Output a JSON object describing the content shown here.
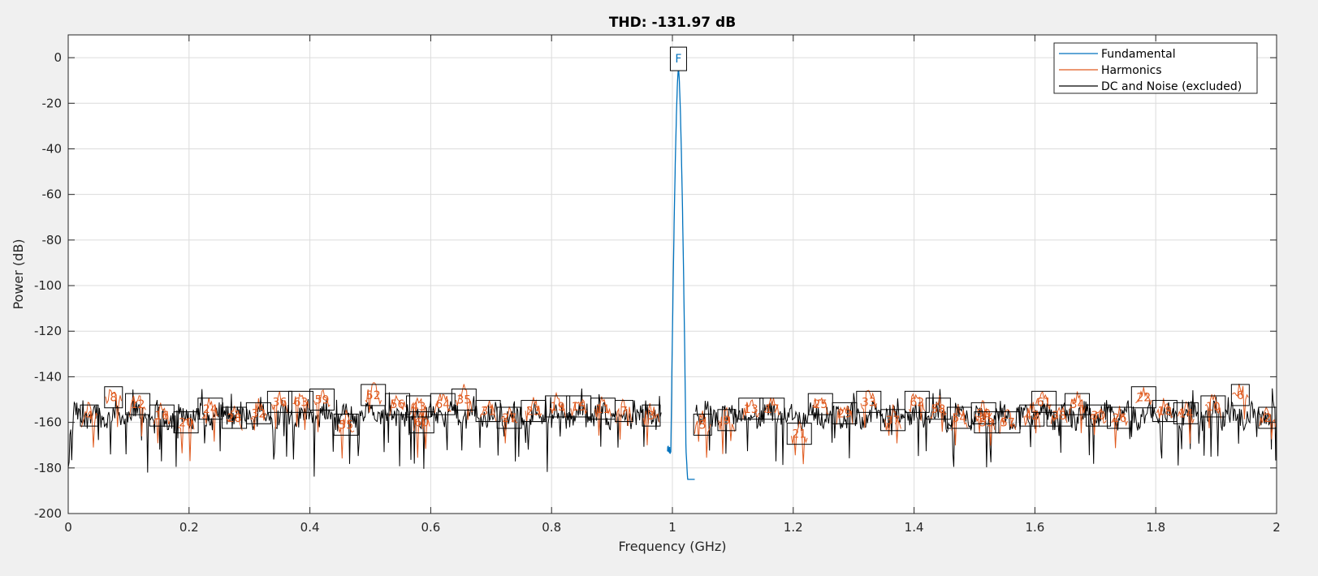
{
  "chart_data": {
    "type": "line",
    "title": "THD: -131.97 dB",
    "xlabel": "Frequency (GHz)",
    "ylabel": "Power (dB)",
    "xlim": [
      0,
      2
    ],
    "ylim": [
      -200,
      10
    ],
    "xticks": [
      0,
      0.2,
      0.4,
      0.6,
      0.8,
      1,
      1.2,
      1.4,
      1.6,
      1.8,
      2
    ],
    "xtick_labels": [
      "0",
      "0.2",
      "0.4",
      "0.6",
      "0.8",
      "1",
      "1.2",
      "1.4",
      "1.6",
      "1.8",
      "2"
    ],
    "yticks": [
      0,
      -20,
      -40,
      -60,
      -80,
      -100,
      -120,
      -140,
      -160,
      -180,
      -200
    ],
    "ytick_labels": [
      "0",
      "-20",
      "-40",
      "-60",
      "-80",
      "-100",
      "-120",
      "-140",
      "-160",
      "-180",
      "-200"
    ],
    "grid": true,
    "legend_position": "top-right",
    "legend": [
      "Fundamental",
      "Harmonics",
      "DC and Noise (excluded)"
    ],
    "colors": {
      "fundamental": "#0072bd",
      "harmonics": "#e05a1e",
      "noise": "#000000",
      "grid": "#dcdcdc",
      "background": "#f0f0f0"
    },
    "noise_floor_db": -157,
    "fundamental": {
      "label": "F",
      "frequency": 1.01,
      "peak_db": -5,
      "min_db": -185
    },
    "harmonic_markers": [
      {
        "label": "4",
        "x": 0.035,
        "y": -157
      },
      {
        "label": "8",
        "x": 0.075,
        "y": -149
      },
      {
        "label": "12",
        "x": 0.115,
        "y": -152
      },
      {
        "label": "16",
        "x": 0.155,
        "y": -157
      },
      {
        "label": "20",
        "x": 0.195,
        "y": -160
      },
      {
        "label": "24",
        "x": 0.235,
        "y": -154
      },
      {
        "label": "28",
        "x": 0.275,
        "y": -158
      },
      {
        "label": "32",
        "x": 0.315,
        "y": -156
      },
      {
        "label": "36",
        "x": 0.35,
        "y": -151
      },
      {
        "label": "63",
        "x": 0.385,
        "y": -151
      },
      {
        "label": "59",
        "x": 0.42,
        "y": -150
      },
      {
        "label": "55",
        "x": 0.46,
        "y": -161
      },
      {
        "label": "52",
        "x": 0.505,
        "y": -148
      },
      {
        "label": "56",
        "x": 0.545,
        "y": -152
      },
      {
        "label": "43",
        "x": 0.58,
        "y": -153
      },
      {
        "label": "60",
        "x": 0.585,
        "y": -160
      },
      {
        "label": "64",
        "x": 0.62,
        "y": -152
      },
      {
        "label": "35",
        "x": 0.655,
        "y": -150
      },
      {
        "label": "31",
        "x": 0.695,
        "y": -155
      },
      {
        "label": "27",
        "x": 0.73,
        "y": -158
      },
      {
        "label": "23",
        "x": 0.77,
        "y": -155
      },
      {
        "label": "19",
        "x": 0.81,
        "y": -153
      },
      {
        "label": "15",
        "x": 0.845,
        "y": -153
      },
      {
        "label": "11",
        "x": 0.885,
        "y": -154
      },
      {
        "label": "7",
        "x": 0.92,
        "y": -155
      },
      {
        "label": "3",
        "x": 0.965,
        "y": -157
      },
      {
        "label": "5",
        "x": 1.05,
        "y": -161
      },
      {
        "label": "9",
        "x": 1.09,
        "y": -159
      },
      {
        "label": "13",
        "x": 1.13,
        "y": -154
      },
      {
        "label": "17",
        "x": 1.165,
        "y": -154
      },
      {
        "label": "21",
        "x": 1.21,
        "y": -165
      },
      {
        "label": "25",
        "x": 1.245,
        "y": -152
      },
      {
        "label": "29",
        "x": 1.285,
        "y": -156
      },
      {
        "label": "33",
        "x": 1.325,
        "y": -151
      },
      {
        "label": "37",
        "x": 1.365,
        "y": -159
      },
      {
        "label": "62",
        "x": 1.405,
        "y": -151
      },
      {
        "label": "58",
        "x": 1.44,
        "y": -154
      },
      {
        "label": "54",
        "x": 1.475,
        "y": -158
      },
      {
        "label": "50",
        "x": 1.515,
        "y": -156
      },
      {
        "label": "53",
        "x": 1.52,
        "y": -160
      },
      {
        "label": "57",
        "x": 1.555,
        "y": -160
      },
      {
        "label": "42",
        "x": 1.595,
        "y": -157
      },
      {
        "label": "61",
        "x": 1.615,
        "y": -151
      },
      {
        "label": "38",
        "x": 1.64,
        "y": -157
      },
      {
        "label": "34",
        "x": 1.67,
        "y": -152
      },
      {
        "label": "30",
        "x": 1.705,
        "y": -157
      },
      {
        "label": "26",
        "x": 1.74,
        "y": -158
      },
      {
        "label": "22",
        "x": 1.78,
        "y": -149
      },
      {
        "label": "18",
        "x": 1.815,
        "y": -155
      },
      {
        "label": "14",
        "x": 1.85,
        "y": -156
      },
      {
        "label": "10",
        "x": 1.895,
        "y": -153
      },
      {
        "label": "6",
        "x": 1.94,
        "y": -148
      },
      {
        "label": "2",
        "x": 1.985,
        "y": -158
      }
    ]
  }
}
